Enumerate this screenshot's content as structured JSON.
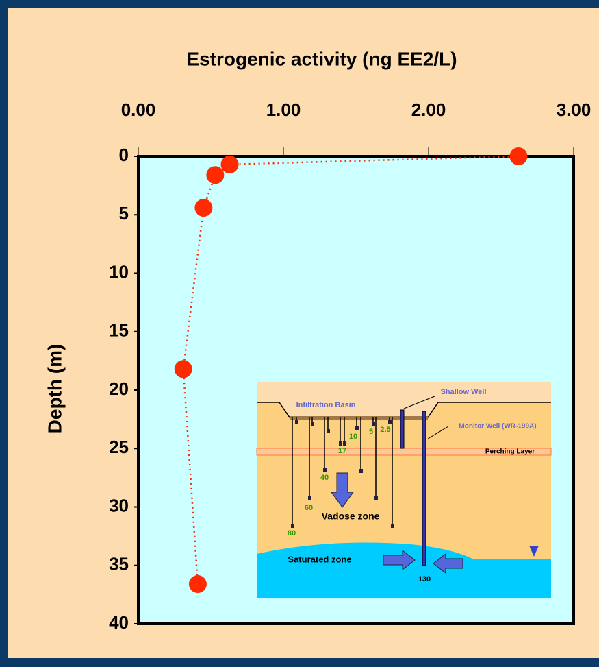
{
  "chart_data": {
    "type": "scatter",
    "title": "Estrogenic activity (ng EE2/L)",
    "y_label": "Depth (m)",
    "x": [
      2.62,
      0.63,
      0.53,
      0.45,
      0.31,
      0.41
    ],
    "y": [
      0,
      0.7,
      1.6,
      4.4,
      18.2,
      36.6
    ],
    "color": "#ff2a00",
    "xlim": [
      0,
      3
    ],
    "ylim": [
      40,
      0
    ],
    "xticks": [
      {
        "value": 0,
        "label": "0.00"
      },
      {
        "value": 1,
        "label": "1.00"
      },
      {
        "value": 2,
        "label": "2.00"
      },
      {
        "value": 3,
        "label": "3.00"
      }
    ],
    "yticks": [
      0,
      5,
      10,
      15,
      20,
      25,
      30,
      35,
      40
    ],
    "grid": false,
    "inset": {
      "shallow_well": "Shallow Well",
      "infiltration_basin": "Infiltration Basin",
      "monitor_well": "Monitor Well (WR-199A)",
      "perching_layer": "Perching Layer",
      "vadose_zone": "Vadose zone",
      "saturated_zone": "Saturated zone",
      "depths": [
        2.5,
        5,
        10,
        17,
        40,
        60,
        80,
        130
      ]
    }
  }
}
